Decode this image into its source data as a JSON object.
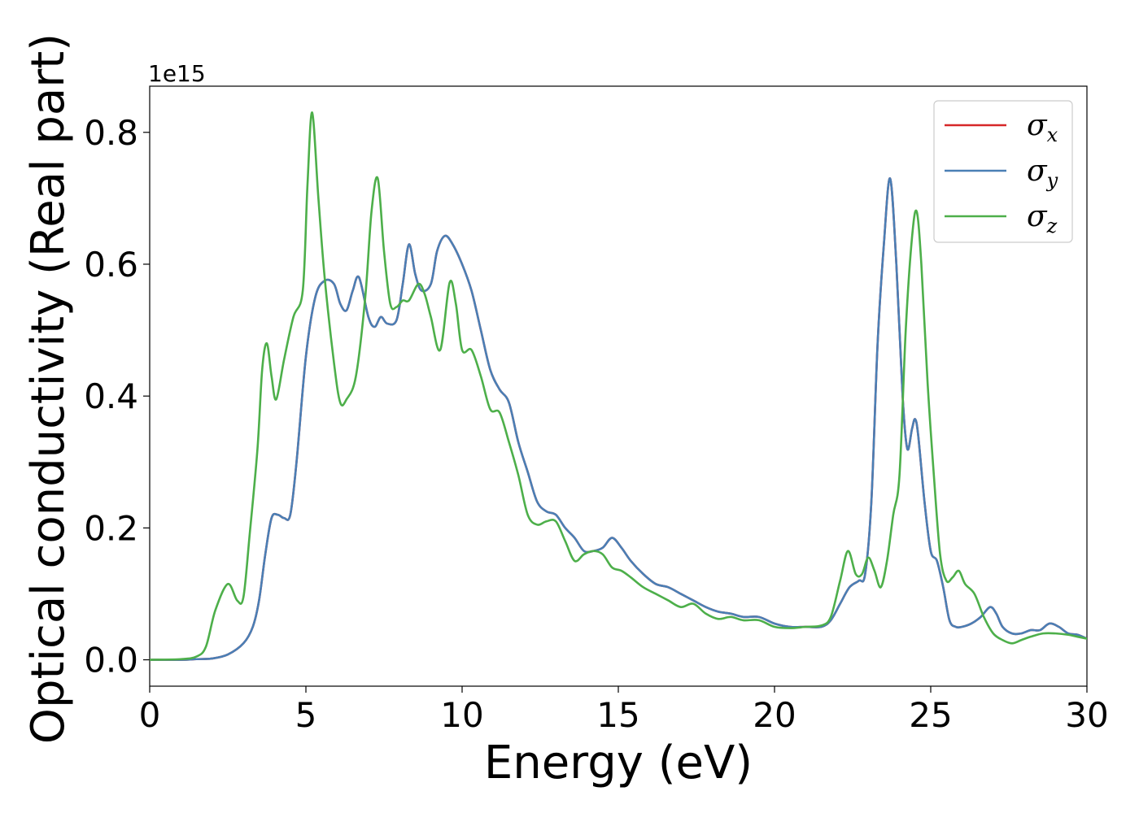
{
  "chart_data": {
    "type": "line",
    "xlabel": "Energy (eV)",
    "ylabel": "Optical conductivity (Real part)",
    "y_offset_label": "1e15",
    "xlim": [
      0,
      30
    ],
    "ylim": [
      -0.04,
      0.87
    ],
    "xticks": [
      0,
      5,
      10,
      15,
      20,
      25,
      30
    ],
    "xtick_labels": [
      "0",
      "5",
      "10",
      "15",
      "20",
      "25",
      "30"
    ],
    "yticks": [
      0.0,
      0.2,
      0.4,
      0.6,
      0.8
    ],
    "ytick_labels": [
      "0.0",
      "0.2",
      "0.4",
      "0.6",
      "0.8"
    ],
    "grid": false,
    "legend_position": "top-right",
    "series": [
      {
        "name": "σx",
        "legend_base": "σ",
        "legend_sub": "x",
        "color": "#d62728",
        "x": [
          0,
          1.0,
          1.5,
          2.0,
          2.5,
          3.0,
          3.3,
          3.5,
          3.7,
          3.9,
          4.1,
          4.3,
          4.5,
          4.7,
          5.0,
          5.3,
          5.6,
          5.9,
          6.1,
          6.3,
          6.5,
          6.7,
          7.0,
          7.2,
          7.4,
          7.6,
          7.9,
          8.1,
          8.3,
          8.5,
          8.7,
          9.0,
          9.2,
          9.45,
          9.7,
          10.0,
          10.3,
          10.6,
          10.9,
          11.2,
          11.5,
          11.8,
          12.1,
          12.4,
          12.7,
          13.0,
          13.3,
          13.6,
          13.9,
          14.2,
          14.5,
          14.8,
          15.1,
          15.4,
          15.8,
          16.2,
          16.6,
          17.0,
          17.4,
          17.8,
          18.2,
          18.6,
          19.0,
          19.5,
          20.0,
          20.5,
          21.0,
          21.5,
          21.8,
          22.1,
          22.4,
          22.7,
          22.9,
          23.1,
          23.3,
          23.5,
          23.7,
          23.9,
          24.1,
          24.25,
          24.4,
          24.5,
          24.6,
          24.8,
          25.0,
          25.2,
          25.4,
          25.6,
          25.8,
          26.0,
          26.3,
          26.6,
          26.9,
          27.1,
          27.3,
          27.6,
          27.9,
          28.2,
          28.5,
          28.8,
          29.1,
          29.4,
          29.7,
          30.0
        ],
        "y": [
          0.0,
          0.0,
          0.001,
          0.002,
          0.008,
          0.025,
          0.05,
          0.09,
          0.16,
          0.215,
          0.22,
          0.215,
          0.22,
          0.3,
          0.46,
          0.55,
          0.575,
          0.57,
          0.54,
          0.53,
          0.56,
          0.58,
          0.52,
          0.505,
          0.52,
          0.51,
          0.515,
          0.57,
          0.63,
          0.585,
          0.56,
          0.57,
          0.62,
          0.643,
          0.63,
          0.6,
          0.56,
          0.5,
          0.44,
          0.41,
          0.39,
          0.33,
          0.285,
          0.24,
          0.225,
          0.22,
          0.2,
          0.185,
          0.165,
          0.165,
          0.17,
          0.185,
          0.17,
          0.15,
          0.13,
          0.115,
          0.11,
          0.1,
          0.09,
          0.08,
          0.073,
          0.07,
          0.065,
          0.065,
          0.055,
          0.05,
          0.05,
          0.05,
          0.06,
          0.085,
          0.11,
          0.12,
          0.13,
          0.24,
          0.48,
          0.63,
          0.73,
          0.6,
          0.4,
          0.32,
          0.35,
          0.365,
          0.34,
          0.24,
          0.165,
          0.15,
          0.11,
          0.06,
          0.05,
          0.05,
          0.055,
          0.065,
          0.08,
          0.07,
          0.05,
          0.04,
          0.04,
          0.045,
          0.045,
          0.055,
          0.05,
          0.04,
          0.038,
          0.032
        ]
      },
      {
        "name": "σy",
        "legend_base": "σ",
        "legend_sub": "y",
        "color": "#4a7fb5",
        "x": [
          0,
          1.0,
          1.5,
          2.0,
          2.5,
          3.0,
          3.3,
          3.5,
          3.7,
          3.9,
          4.1,
          4.3,
          4.5,
          4.7,
          5.0,
          5.3,
          5.6,
          5.9,
          6.1,
          6.3,
          6.5,
          6.7,
          7.0,
          7.2,
          7.4,
          7.6,
          7.9,
          8.1,
          8.3,
          8.5,
          8.7,
          9.0,
          9.2,
          9.45,
          9.7,
          10.0,
          10.3,
          10.6,
          10.9,
          11.2,
          11.5,
          11.8,
          12.1,
          12.4,
          12.7,
          13.0,
          13.3,
          13.6,
          13.9,
          14.2,
          14.5,
          14.8,
          15.1,
          15.4,
          15.8,
          16.2,
          16.6,
          17.0,
          17.4,
          17.8,
          18.2,
          18.6,
          19.0,
          19.5,
          20.0,
          20.5,
          21.0,
          21.5,
          21.8,
          22.1,
          22.4,
          22.7,
          22.9,
          23.1,
          23.3,
          23.5,
          23.7,
          23.9,
          24.1,
          24.25,
          24.4,
          24.5,
          24.6,
          24.8,
          25.0,
          25.2,
          25.4,
          25.6,
          25.8,
          26.0,
          26.3,
          26.6,
          26.9,
          27.1,
          27.3,
          27.6,
          27.9,
          28.2,
          28.5,
          28.8,
          29.1,
          29.4,
          29.7,
          30.0
        ],
        "y": [
          0.0,
          0.0,
          0.001,
          0.002,
          0.008,
          0.025,
          0.05,
          0.09,
          0.16,
          0.215,
          0.22,
          0.215,
          0.22,
          0.3,
          0.46,
          0.55,
          0.575,
          0.57,
          0.54,
          0.53,
          0.56,
          0.58,
          0.52,
          0.505,
          0.52,
          0.51,
          0.515,
          0.57,
          0.63,
          0.585,
          0.56,
          0.57,
          0.62,
          0.643,
          0.63,
          0.6,
          0.56,
          0.5,
          0.44,
          0.41,
          0.39,
          0.33,
          0.285,
          0.24,
          0.225,
          0.22,
          0.2,
          0.185,
          0.165,
          0.165,
          0.17,
          0.185,
          0.17,
          0.15,
          0.13,
          0.115,
          0.11,
          0.1,
          0.09,
          0.08,
          0.073,
          0.07,
          0.065,
          0.065,
          0.055,
          0.05,
          0.05,
          0.05,
          0.06,
          0.085,
          0.11,
          0.12,
          0.13,
          0.24,
          0.48,
          0.63,
          0.73,
          0.6,
          0.4,
          0.32,
          0.35,
          0.365,
          0.34,
          0.24,
          0.165,
          0.15,
          0.11,
          0.06,
          0.05,
          0.05,
          0.055,
          0.065,
          0.08,
          0.07,
          0.05,
          0.04,
          0.04,
          0.045,
          0.045,
          0.055,
          0.05,
          0.04,
          0.038,
          0.032
        ]
      },
      {
        "name": "σz",
        "legend_base": "σ",
        "legend_sub": "z",
        "color": "#4daf4a",
        "x": [
          0,
          1.0,
          1.5,
          1.8,
          2.1,
          2.5,
          2.8,
          3.0,
          3.2,
          3.45,
          3.6,
          3.75,
          3.9,
          4.05,
          4.3,
          4.6,
          4.9,
          5.05,
          5.2,
          5.4,
          5.6,
          5.9,
          6.1,
          6.3,
          6.6,
          6.9,
          7.1,
          7.3,
          7.5,
          7.7,
          7.9,
          8.1,
          8.3,
          8.6,
          8.8,
          9.0,
          9.3,
          9.6,
          9.8,
          10.0,
          10.3,
          10.6,
          10.9,
          11.2,
          11.5,
          11.8,
          12.1,
          12.4,
          12.7,
          13.0,
          13.3,
          13.6,
          13.9,
          14.2,
          14.5,
          14.8,
          15.1,
          15.4,
          15.8,
          16.2,
          16.6,
          17.0,
          17.4,
          17.8,
          18.2,
          18.6,
          19.0,
          19.5,
          20.0,
          20.5,
          21.0,
          21.5,
          21.8,
          22.1,
          22.35,
          22.6,
          22.8,
          23.0,
          23.2,
          23.4,
          23.6,
          23.8,
          24.0,
          24.2,
          24.4,
          24.55,
          24.7,
          24.9,
          25.1,
          25.3,
          25.5,
          25.7,
          25.9,
          26.1,
          26.4,
          26.7,
          27.0,
          27.3,
          27.6,
          27.9,
          28.2,
          28.6,
          29.0,
          29.4,
          29.7,
          30.0
        ],
        "y": [
          0.0,
          0.001,
          0.005,
          0.02,
          0.075,
          0.115,
          0.09,
          0.095,
          0.19,
          0.32,
          0.44,
          0.48,
          0.43,
          0.395,
          0.455,
          0.52,
          0.56,
          0.72,
          0.83,
          0.7,
          0.58,
          0.45,
          0.39,
          0.395,
          0.43,
          0.55,
          0.68,
          0.73,
          0.62,
          0.54,
          0.535,
          0.545,
          0.545,
          0.57,
          0.555,
          0.52,
          0.47,
          0.572,
          0.54,
          0.47,
          0.47,
          0.43,
          0.38,
          0.375,
          0.33,
          0.28,
          0.22,
          0.205,
          0.21,
          0.21,
          0.18,
          0.15,
          0.16,
          0.165,
          0.16,
          0.14,
          0.135,
          0.125,
          0.11,
          0.1,
          0.09,
          0.08,
          0.085,
          0.07,
          0.062,
          0.065,
          0.06,
          0.06,
          0.05,
          0.048,
          0.05,
          0.052,
          0.065,
          0.12,
          0.165,
          0.13,
          0.13,
          0.155,
          0.135,
          0.11,
          0.15,
          0.22,
          0.28,
          0.5,
          0.64,
          0.68,
          0.6,
          0.42,
          0.28,
          0.16,
          0.12,
          0.125,
          0.135,
          0.115,
          0.1,
          0.065,
          0.04,
          0.03,
          0.025,
          0.03,
          0.035,
          0.04,
          0.04,
          0.038,
          0.035,
          0.032
        ]
      }
    ]
  }
}
